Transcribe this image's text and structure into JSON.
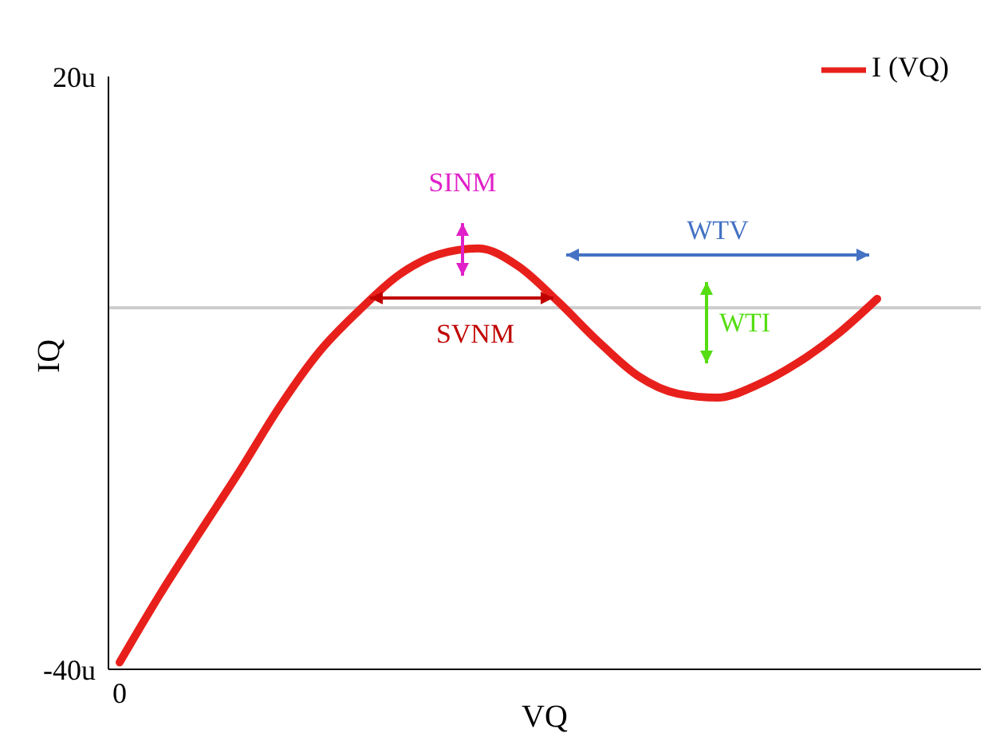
{
  "chart_data": {
    "type": "line",
    "xlabel": "VQ",
    "ylabel": "IQ",
    "categories": [
      "0",
      null,
      null,
      null,
      null,
      null,
      null,
      null,
      null,
      null,
      null,
      null,
      null,
      null,
      null,
      null,
      null,
      null,
      null,
      null
    ],
    "series": [
      {
        "name": "I (VQ)",
        "color": "#e8201c",
        "values": [
          -39.3,
          -32.5,
          -26.2,
          -20,
          -13.5,
          -7.9,
          -3.7,
          -0.1,
          2,
          2.6,
          0.8,
          -2.8,
          -6.8,
          -10.3,
          -12.1,
          -12.5,
          -11.2,
          -9,
          -6.1,
          -2.5
        ]
      }
    ],
    "ylim": [
      -40,
      20
    ],
    "yticks": [
      {
        "value": -40,
        "label": "-40u"
      },
      {
        "value": 20,
        "label": "20u"
      }
    ],
    "ref_lines": [
      {
        "axis": "y",
        "value": -3.4,
        "color": "#cccccc"
      }
    ],
    "annotations": [
      "SINM",
      "SVNM",
      "WTV",
      "WTI"
    ],
    "grid": false,
    "legend": "top right",
    "marker": "none",
    "line_style": "solid"
  }
}
